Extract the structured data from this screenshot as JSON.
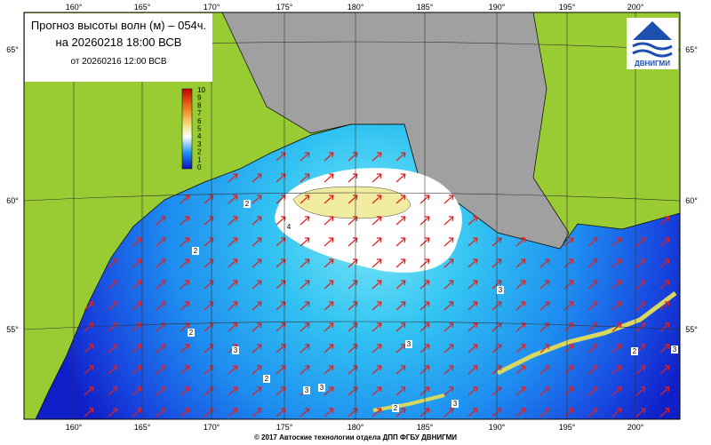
{
  "header": {
    "title": "Прогноз высоты волн (м) – 054ч.",
    "valid_time": "на 20260218 18:00 ВСВ",
    "issue_time": "от 20260216 12:00 ВСВ"
  },
  "logo": {
    "text": "ДВНИГМИ"
  },
  "colorbar": {
    "labels": [
      10,
      9,
      8,
      7,
      6,
      5,
      4,
      3,
      2,
      1,
      0
    ]
  },
  "longitude_labels": [
    "160°",
    "165°",
    "170°",
    "175°",
    "180°",
    "185°",
    "190°",
    "195°",
    "200°"
  ],
  "latitude_labels": [
    "65°",
    "60°",
    "55°"
  ],
  "contour_labels": [
    "2",
    "4",
    "2",
    "2",
    "3",
    "3",
    "3",
    "2",
    "3",
    "3",
    "2",
    "3",
    "2",
    "3"
  ],
  "footer": "© 2017 Автоские технологии отдела ДПП ФГБУ ДВНИГМИ"
}
